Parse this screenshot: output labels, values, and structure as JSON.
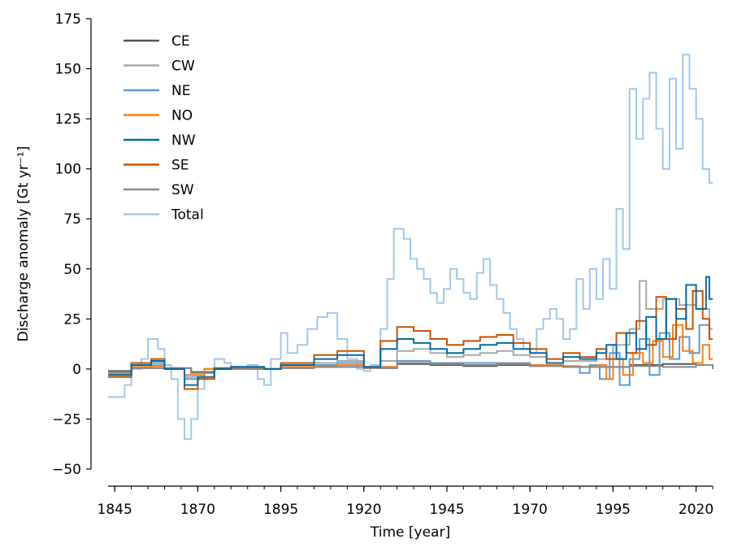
{
  "chart_data": {
    "type": "line",
    "step": true,
    "xlabel": "Time [year]",
    "ylabel": "Discharge anomaly [Gt yr⁻¹]",
    "xlim": [
      1843,
      2025
    ],
    "ylim": [
      -55,
      175
    ],
    "xticks": [
      1845,
      1870,
      1895,
      1920,
      1945,
      1970,
      1995,
      2020
    ],
    "yticks": [
      -50,
      -25,
      0,
      25,
      50,
      75,
      100,
      125,
      150,
      175
    ],
    "ytick_labels": [
      "−50",
      "−25",
      "0",
      "25",
      "50",
      "75",
      "100",
      "125",
      "150",
      "175"
    ],
    "legend_position": "top-left",
    "series": [
      {
        "name": "CE",
        "color": "#555555",
        "points": [
          [
            1843,
            -1
          ],
          [
            1850,
            0.5
          ],
          [
            1860,
            0.5
          ],
          [
            1868,
            -1.5
          ],
          [
            1875,
            0.5
          ],
          [
            1885,
            0
          ],
          [
            1895,
            0.5
          ],
          [
            1905,
            1
          ],
          [
            1920,
            0.5
          ],
          [
            1930,
            2.5
          ],
          [
            1940,
            2
          ],
          [
            1950,
            1.5
          ],
          [
            1960,
            2
          ],
          [
            1970,
            1.5
          ],
          [
            1980,
            1
          ],
          [
            1990,
            1
          ],
          [
            2000,
            2
          ],
          [
            2010,
            2.5
          ],
          [
            2020,
            2
          ],
          [
            2025,
            1.5
          ]
        ]
      },
      {
        "name": "CW",
        "color": "#a8a8a8",
        "points": [
          [
            1843,
            -2
          ],
          [
            1850,
            1
          ],
          [
            1856,
            2
          ],
          [
            1860,
            0
          ],
          [
            1866,
            -4
          ],
          [
            1872,
            0
          ],
          [
            1880,
            1
          ],
          [
            1890,
            0
          ],
          [
            1895,
            1
          ],
          [
            1905,
            3
          ],
          [
            1912,
            4
          ],
          [
            1920,
            1
          ],
          [
            1925,
            4
          ],
          [
            1930,
            9
          ],
          [
            1935,
            10
          ],
          [
            1940,
            8
          ],
          [
            1945,
            6
          ],
          [
            1950,
            7
          ],
          [
            1955,
            8
          ],
          [
            1960,
            9
          ],
          [
            1965,
            7
          ],
          [
            1970,
            6
          ],
          [
            1975,
            3
          ],
          [
            1980,
            4
          ],
          [
            1985,
            4
          ],
          [
            1990,
            5
          ],
          [
            1995,
            12
          ],
          [
            2000,
            20
          ],
          [
            2003,
            44
          ],
          [
            2005,
            30
          ],
          [
            2010,
            35
          ],
          [
            2015,
            32
          ],
          [
            2020,
            30
          ],
          [
            2024,
            20
          ]
        ]
      },
      {
        "name": "NE",
        "color": "#5b9bd5",
        "points": [
          [
            1843,
            -3
          ],
          [
            1850,
            2
          ],
          [
            1856,
            3
          ],
          [
            1860,
            0
          ],
          [
            1866,
            -5
          ],
          [
            1872,
            0
          ],
          [
            1880,
            1
          ],
          [
            1890,
            0
          ],
          [
            1895,
            1
          ],
          [
            1905,
            2
          ],
          [
            1912,
            3
          ],
          [
            1920,
            1
          ],
          [
            1930,
            4
          ],
          [
            1940,
            3
          ],
          [
            1950,
            3
          ],
          [
            1960,
            3
          ],
          [
            1970,
            2
          ],
          [
            1980,
            1
          ],
          [
            1985,
            -2
          ],
          [
            1988,
            2
          ],
          [
            1991,
            -5
          ],
          [
            1994,
            8
          ],
          [
            1997,
            -8
          ],
          [
            2000,
            5
          ],
          [
            2003,
            15
          ],
          [
            2006,
            -3
          ],
          [
            2009,
            18
          ],
          [
            2012,
            5
          ],
          [
            2015,
            16
          ],
          [
            2018,
            8
          ],
          [
            2021,
            22
          ],
          [
            2024,
            15
          ]
        ]
      },
      {
        "name": "NO",
        "color": "#ff7f0e",
        "points": [
          [
            1843,
            -3
          ],
          [
            1850,
            1
          ],
          [
            1856,
            1.5
          ],
          [
            1860,
            0
          ],
          [
            1866,
            -3
          ],
          [
            1872,
            0
          ],
          [
            1880,
            0.5
          ],
          [
            1890,
            0
          ],
          [
            1895,
            1
          ],
          [
            1905,
            1.5
          ],
          [
            1912,
            2
          ],
          [
            1920,
            1
          ],
          [
            1930,
            3
          ],
          [
            1940,
            2.5
          ],
          [
            1950,
            2
          ],
          [
            1960,
            2.5
          ],
          [
            1970,
            2
          ],
          [
            1980,
            1.5
          ],
          [
            1985,
            1
          ],
          [
            1990,
            2
          ],
          [
            1993,
            -5
          ],
          [
            1995,
            5
          ],
          [
            1998,
            -3
          ],
          [
            2001,
            8
          ],
          [
            2004,
            3
          ],
          [
            2007,
            14
          ],
          [
            2010,
            6
          ],
          [
            2013,
            22
          ],
          [
            2016,
            9
          ],
          [
            2019,
            3
          ],
          [
            2022,
            12
          ],
          [
            2024,
            5
          ]
        ]
      },
      {
        "name": "NW",
        "color": "#006ba4",
        "points": [
          [
            1843,
            -3
          ],
          [
            1850,
            2
          ],
          [
            1856,
            4
          ],
          [
            1860,
            0
          ],
          [
            1866,
            -8
          ],
          [
            1870,
            -4
          ],
          [
            1875,
            0
          ],
          [
            1880,
            1
          ],
          [
            1890,
            0
          ],
          [
            1895,
            2
          ],
          [
            1905,
            5
          ],
          [
            1912,
            7
          ],
          [
            1920,
            1
          ],
          [
            1925,
            10
          ],
          [
            1930,
            15
          ],
          [
            1935,
            13
          ],
          [
            1940,
            10
          ],
          [
            1945,
            8
          ],
          [
            1950,
            10
          ],
          [
            1955,
            12
          ],
          [
            1960,
            13
          ],
          [
            1965,
            10
          ],
          [
            1970,
            8
          ],
          [
            1975,
            3
          ],
          [
            1980,
            6
          ],
          [
            1985,
            5
          ],
          [
            1990,
            8
          ],
          [
            1993,
            12
          ],
          [
            1996,
            5
          ],
          [
            1999,
            18
          ],
          [
            2002,
            10
          ],
          [
            2005,
            26
          ],
          [
            2008,
            15
          ],
          [
            2011,
            35
          ],
          [
            2014,
            25
          ],
          [
            2017,
            42
          ],
          [
            2020,
            30
          ],
          [
            2023,
            46
          ],
          [
            2024,
            35
          ]
        ]
      },
      {
        "name": "SE",
        "color": "#c85200",
        "points": [
          [
            1843,
            -4
          ],
          [
            1850,
            3
          ],
          [
            1856,
            5
          ],
          [
            1860,
            0
          ],
          [
            1866,
            -10
          ],
          [
            1870,
            -5
          ],
          [
            1875,
            0
          ],
          [
            1880,
            1
          ],
          [
            1890,
            0
          ],
          [
            1895,
            3
          ],
          [
            1905,
            7
          ],
          [
            1912,
            9
          ],
          [
            1920,
            1
          ],
          [
            1925,
            14
          ],
          [
            1930,
            21
          ],
          [
            1935,
            19
          ],
          [
            1940,
            15
          ],
          [
            1945,
            12
          ],
          [
            1950,
            14
          ],
          [
            1955,
            16
          ],
          [
            1960,
            17
          ],
          [
            1965,
            13
          ],
          [
            1970,
            10
          ],
          [
            1975,
            5
          ],
          [
            1980,
            8
          ],
          [
            1985,
            6
          ],
          [
            1990,
            10
          ],
          [
            1993,
            5
          ],
          [
            1996,
            18
          ],
          [
            1999,
            8
          ],
          [
            2002,
            24
          ],
          [
            2005,
            12
          ],
          [
            2008,
            36
          ],
          [
            2011,
            15
          ],
          [
            2014,
            30
          ],
          [
            2017,
            20
          ],
          [
            2019,
            39
          ],
          [
            2022,
            25
          ],
          [
            2024,
            15
          ]
        ]
      },
      {
        "name": "SW",
        "color": "#898989",
        "points": [
          [
            1843,
            -2
          ],
          [
            1850,
            0.5
          ],
          [
            1860,
            0.5
          ],
          [
            1868,
            -2
          ],
          [
            1875,
            0
          ],
          [
            1885,
            0
          ],
          [
            1895,
            0.5
          ],
          [
            1905,
            1
          ],
          [
            1920,
            0.5
          ],
          [
            1930,
            3
          ],
          [
            1940,
            2.5
          ],
          [
            1950,
            2
          ],
          [
            1960,
            2.5
          ],
          [
            1970,
            1.5
          ],
          [
            1980,
            1
          ],
          [
            1990,
            1
          ],
          [
            2000,
            1.5
          ],
          [
            2010,
            1
          ],
          [
            2020,
            2
          ],
          [
            2025,
            0
          ]
        ]
      },
      {
        "name": "Total",
        "color": "#a2c8ec",
        "points": [
          [
            1843,
            -14
          ],
          [
            1848,
            -8
          ],
          [
            1850,
            0
          ],
          [
            1853,
            5
          ],
          [
            1855,
            15
          ],
          [
            1858,
            10
          ],
          [
            1860,
            2
          ],
          [
            1862,
            -5
          ],
          [
            1864,
            -25
          ],
          [
            1866,
            -35
          ],
          [
            1868,
            -25
          ],
          [
            1870,
            -10
          ],
          [
            1872,
            0
          ],
          [
            1875,
            5
          ],
          [
            1878,
            3
          ],
          [
            1880,
            0
          ],
          [
            1885,
            2
          ],
          [
            1888,
            -5
          ],
          [
            1890,
            -8
          ],
          [
            1892,
            5
          ],
          [
            1895,
            18
          ],
          [
            1897,
            8
          ],
          [
            1900,
            12
          ],
          [
            1903,
            20
          ],
          [
            1906,
            26
          ],
          [
            1909,
            28
          ],
          [
            1912,
            15
          ],
          [
            1915,
            5
          ],
          [
            1918,
            0
          ],
          [
            1920,
            -1
          ],
          [
            1922,
            2
          ],
          [
            1925,
            20
          ],
          [
            1927,
            45
          ],
          [
            1929,
            70
          ],
          [
            1932,
            65
          ],
          [
            1934,
            55
          ],
          [
            1936,
            50
          ],
          [
            1938,
            45
          ],
          [
            1940,
            38
          ],
          [
            1942,
            33
          ],
          [
            1944,
            40
          ],
          [
            1946,
            50
          ],
          [
            1948,
            45
          ],
          [
            1950,
            38
          ],
          [
            1952,
            35
          ],
          [
            1954,
            48
          ],
          [
            1956,
            55
          ],
          [
            1958,
            42
          ],
          [
            1960,
            35
          ],
          [
            1962,
            28
          ],
          [
            1964,
            20
          ],
          [
            1966,
            15
          ],
          [
            1968,
            10
          ],
          [
            1970,
            8
          ],
          [
            1972,
            20
          ],
          [
            1974,
            25
          ],
          [
            1976,
            30
          ],
          [
            1978,
            25
          ],
          [
            1980,
            15
          ],
          [
            1982,
            20
          ],
          [
            1984,
            45
          ],
          [
            1986,
            30
          ],
          [
            1988,
            50
          ],
          [
            1990,
            35
          ],
          [
            1992,
            55
          ],
          [
            1994,
            40
          ],
          [
            1996,
            80
          ],
          [
            1998,
            60
          ],
          [
            2000,
            140
          ],
          [
            2002,
            115
          ],
          [
            2004,
            135
          ],
          [
            2006,
            148
          ],
          [
            2008,
            120
          ],
          [
            2010,
            100
          ],
          [
            2012,
            145
          ],
          [
            2014,
            110
          ],
          [
            2016,
            157
          ],
          [
            2018,
            140
          ],
          [
            2020,
            125
          ],
          [
            2022,
            100
          ],
          [
            2024,
            93
          ]
        ]
      }
    ]
  }
}
